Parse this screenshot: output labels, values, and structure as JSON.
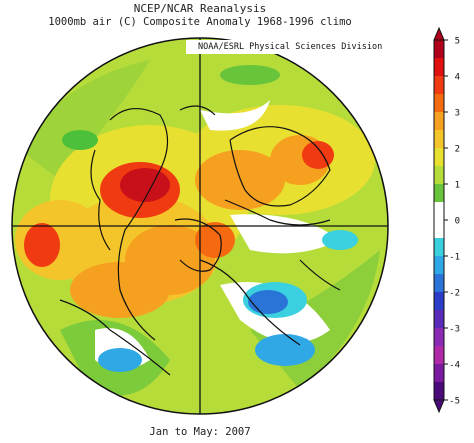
{
  "header": {
    "title": "NCEP/NCAR Reanalysis",
    "subtitle": "1000mb air (C) Composite Anomaly 1968-1996 climo",
    "credit": "NOAA/ESRL Physical Sciences Division"
  },
  "footer": {
    "period": "Jan to May: 2007"
  },
  "map": {
    "projection": "north-polar-stereographic",
    "variable": "1000mb air temperature anomaly",
    "units": "C"
  },
  "colorbar": {
    "ticks": [
      "5",
      "4",
      "3",
      "2",
      "1",
      "0",
      "-1",
      "-2",
      "-3",
      "-4",
      "-5"
    ],
    "bins": [
      {
        "from": 4.5,
        "to": 5,
        "color": "#b0001a"
      },
      {
        "from": 4,
        "to": 4.5,
        "color": "#e01010"
      },
      {
        "from": 3.5,
        "to": 4,
        "color": "#f03a12"
      },
      {
        "from": 3,
        "to": 3.5,
        "color": "#f56a10"
      },
      {
        "from": 2.5,
        "to": 3,
        "color": "#f6a020"
      },
      {
        "from": 2,
        "to": 2.5,
        "color": "#f4c52a"
      },
      {
        "from": 1.5,
        "to": 2,
        "color": "#e8e030"
      },
      {
        "from": 1,
        "to": 1.5,
        "color": "#b6dc3a"
      },
      {
        "from": 0.5,
        "to": 1,
        "color": "#68c43a"
      },
      {
        "from": 0,
        "to": 0.5,
        "color": "#ffffff"
      },
      {
        "from": -0.5,
        "to": 0,
        "color": "#ffffff"
      },
      {
        "from": -1,
        "to": -0.5,
        "color": "#3ad0e0"
      },
      {
        "from": -1.5,
        "to": -1,
        "color": "#30a8e6"
      },
      {
        "from": -2,
        "to": -1.5,
        "color": "#2a74d8"
      },
      {
        "from": -2.5,
        "to": -2,
        "color": "#2a3cc8"
      },
      {
        "from": -3,
        "to": -2.5,
        "color": "#5a2ab8"
      },
      {
        "from": -3.5,
        "to": -3,
        "color": "#8a2ab4"
      },
      {
        "from": -4,
        "to": -3.5,
        "color": "#b02aa8"
      },
      {
        "from": -4.5,
        "to": -4,
        "color": "#7a1aa0"
      },
      {
        "from": -5,
        "to": -4.5,
        "color": "#4a0a7a"
      }
    ]
  },
  "colors": {
    "background_anomaly": "#b6dc3a",
    "warm_core": "#c8101a",
    "cool_core": "#2a6cd6",
    "coastline": "#111111"
  }
}
